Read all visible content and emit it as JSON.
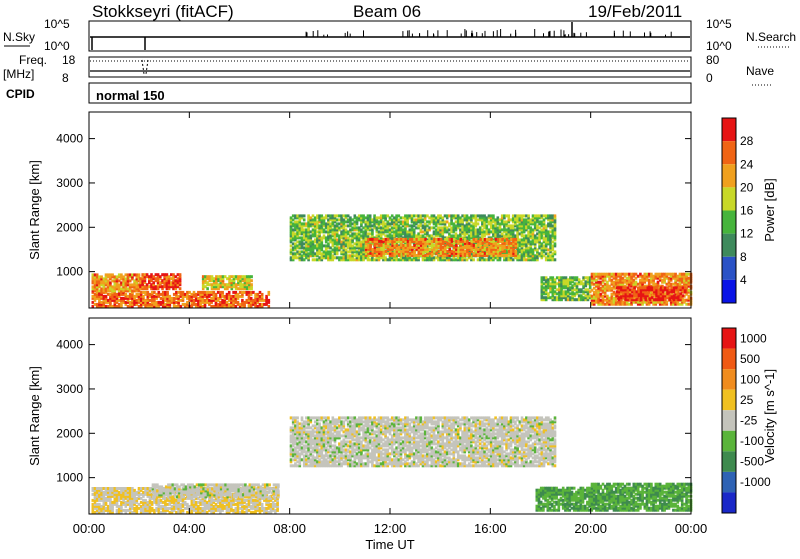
{
  "header": {
    "station": "Stokkseyri (fitACF)",
    "beam": "Beam 06",
    "date": "19/Feb/2011"
  },
  "nsky_panel": {
    "label": "N.Sky",
    "ytick_top": "10^5",
    "ytick_bottom": "10^0",
    "right_ytick_top": "10^5",
    "right_ytick_bottom": "10^0",
    "right_label": "N.Search"
  },
  "freq_panel": {
    "label_top": "Freq.",
    "label_unit": "[MHz]",
    "ytick_top": "18",
    "ytick_bottom": "8",
    "right_ytick_top": "80",
    "right_ytick_bottom": "0",
    "right_label": "Nave"
  },
  "cpid_panel": {
    "label": "CPID",
    "mode": "normal 150"
  },
  "power_panel": {
    "ylabel": "Slant Range [km]",
    "yticks": [
      "1000",
      "2000",
      "3000",
      "4000"
    ],
    "colorbar_label": "Power [dB]",
    "colorbar_ticks": [
      "4",
      "8",
      "12",
      "16",
      "20",
      "24",
      "28"
    ],
    "colorbar_colors": [
      "#0a14e6",
      "#2a52c6",
      "#3e8a5c",
      "#46b43c",
      "#c8d828",
      "#f0a01e",
      "#f06414",
      "#e61414"
    ]
  },
  "velocity_panel": {
    "ylabel": "Slant Range [km]",
    "yticks": [
      "1000",
      "2000",
      "3000",
      "4000"
    ],
    "colorbar_label": "Velocity [m s^-1]",
    "colorbar_ticks": [
      "1000",
      "500",
      "100",
      "25",
      "-25",
      "-100",
      "-500",
      "-1000"
    ],
    "colorbar_colors": [
      "#1a28c8",
      "#2e62b4",
      "#3e8a4e",
      "#5ab43a",
      "#c4c4bc",
      "#f0c020",
      "#f08c1e",
      "#f05a14",
      "#e61414"
    ]
  },
  "x_axis": {
    "ticks": [
      "00:00",
      "04:00",
      "08:00",
      "12:00",
      "16:00",
      "20:00",
      "00:00"
    ],
    "label": "Time UT"
  },
  "chart_data": {
    "type": "heatmap",
    "title": "Stokkseyri (fitACF) Beam 06 19/Feb/2011",
    "xlabel": "Time UT",
    "ylabel": "Slant Range [km]",
    "xlim_hours": [
      0,
      24
    ],
    "ylim_km": [
      180,
      4600
    ],
    "panels": [
      {
        "name": "Power [dB]",
        "clim": [
          0,
          30
        ],
        "regions": [
          {
            "t0": 0.1,
            "t1": 7.2,
            "r0": 250,
            "r1": 600,
            "value": 24
          },
          {
            "t0": 0.1,
            "t1": 2.0,
            "r0": 600,
            "r1": 1000,
            "value": 22
          },
          {
            "t0": 2.0,
            "t1": 3.6,
            "r0": 650,
            "r1": 1000,
            "value": 26
          },
          {
            "t0": 4.5,
            "t1": 6.5,
            "r0": 650,
            "r1": 950,
            "value": 18
          },
          {
            "t0": 8.0,
            "t1": 18.6,
            "r0": 1300,
            "r1": 2300,
            "value": 14
          },
          {
            "t0": 11.0,
            "t1": 17.0,
            "r0": 1400,
            "r1": 1800,
            "value": 22
          },
          {
            "t0": 18.0,
            "t1": 20.0,
            "r0": 400,
            "r1": 900,
            "value": 14
          },
          {
            "t0": 20.0,
            "t1": 24.0,
            "r0": 300,
            "r1": 1000,
            "value": 22
          },
          {
            "t0": 21.0,
            "t1": 23.8,
            "r0": 400,
            "r1": 700,
            "value": 27
          }
        ]
      },
      {
        "name": "Velocity [m s^-1]",
        "clim": [
          -1000,
          1000
        ],
        "regions": [
          {
            "t0": 0.1,
            "t1": 7.5,
            "r0": 250,
            "r1": 800,
            "value": 100
          },
          {
            "t0": 2.5,
            "t1": 7.5,
            "r0": 600,
            "r1": 900,
            "value": 0
          },
          {
            "t0": 8.0,
            "t1": 18.6,
            "r0": 1300,
            "r1": 2400,
            "value": 0
          },
          {
            "t0": 17.8,
            "t1": 20.0,
            "r0": 300,
            "r1": 800,
            "value": -300
          },
          {
            "t0": 20.0,
            "t1": 24.0,
            "r0": 300,
            "r1": 900,
            "value": -300
          }
        ]
      }
    ]
  }
}
